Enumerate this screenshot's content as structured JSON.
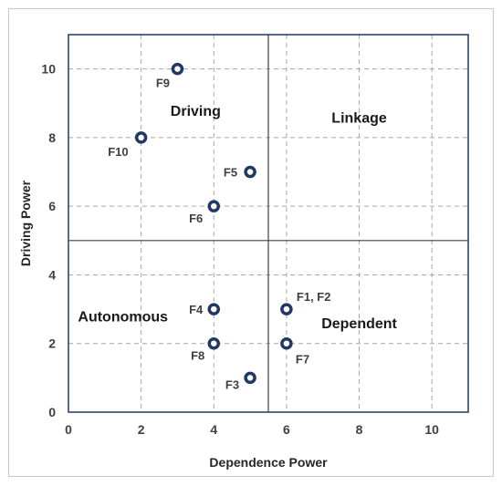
{
  "chart_data": {
    "type": "scatter",
    "xlabel": "Dependence Power",
    "ylabel": "Driving Power",
    "xlim": [
      0,
      11
    ],
    "ylim": [
      0,
      11
    ],
    "xticks": [
      0,
      2,
      4,
      6,
      8,
      10
    ],
    "yticks": [
      0,
      2,
      4,
      6,
      8,
      10
    ],
    "grid": true,
    "divider_x": 5.5,
    "divider_y": 5,
    "points": [
      {
        "label": "F9",
        "x": 3,
        "y": 10
      },
      {
        "label": "F10",
        "x": 2,
        "y": 8
      },
      {
        "label": "F5",
        "x": 5,
        "y": 7
      },
      {
        "label": "F6",
        "x": 4,
        "y": 6
      },
      {
        "label": "F4",
        "x": 4,
        "y": 3
      },
      {
        "label": "F1, F2",
        "x": 6,
        "y": 3
      },
      {
        "label": "F8",
        "x": 4,
        "y": 2
      },
      {
        "label": "F7",
        "x": 6,
        "y": 2
      },
      {
        "label": "F3",
        "x": 5,
        "y": 1
      }
    ],
    "quadrants": [
      {
        "label": "Driving",
        "x": 3.5,
        "y": 8.8
      },
      {
        "label": "Linkage",
        "x": 8,
        "y": 8.6
      },
      {
        "label": "Autonomous",
        "x": 1.5,
        "y": 2.8
      },
      {
        "label": "Dependent",
        "x": 8,
        "y": 2.6
      }
    ],
    "marker_color": "#1f3864",
    "grid_color": "#a6a6a6",
    "divider_color": "#404040"
  }
}
